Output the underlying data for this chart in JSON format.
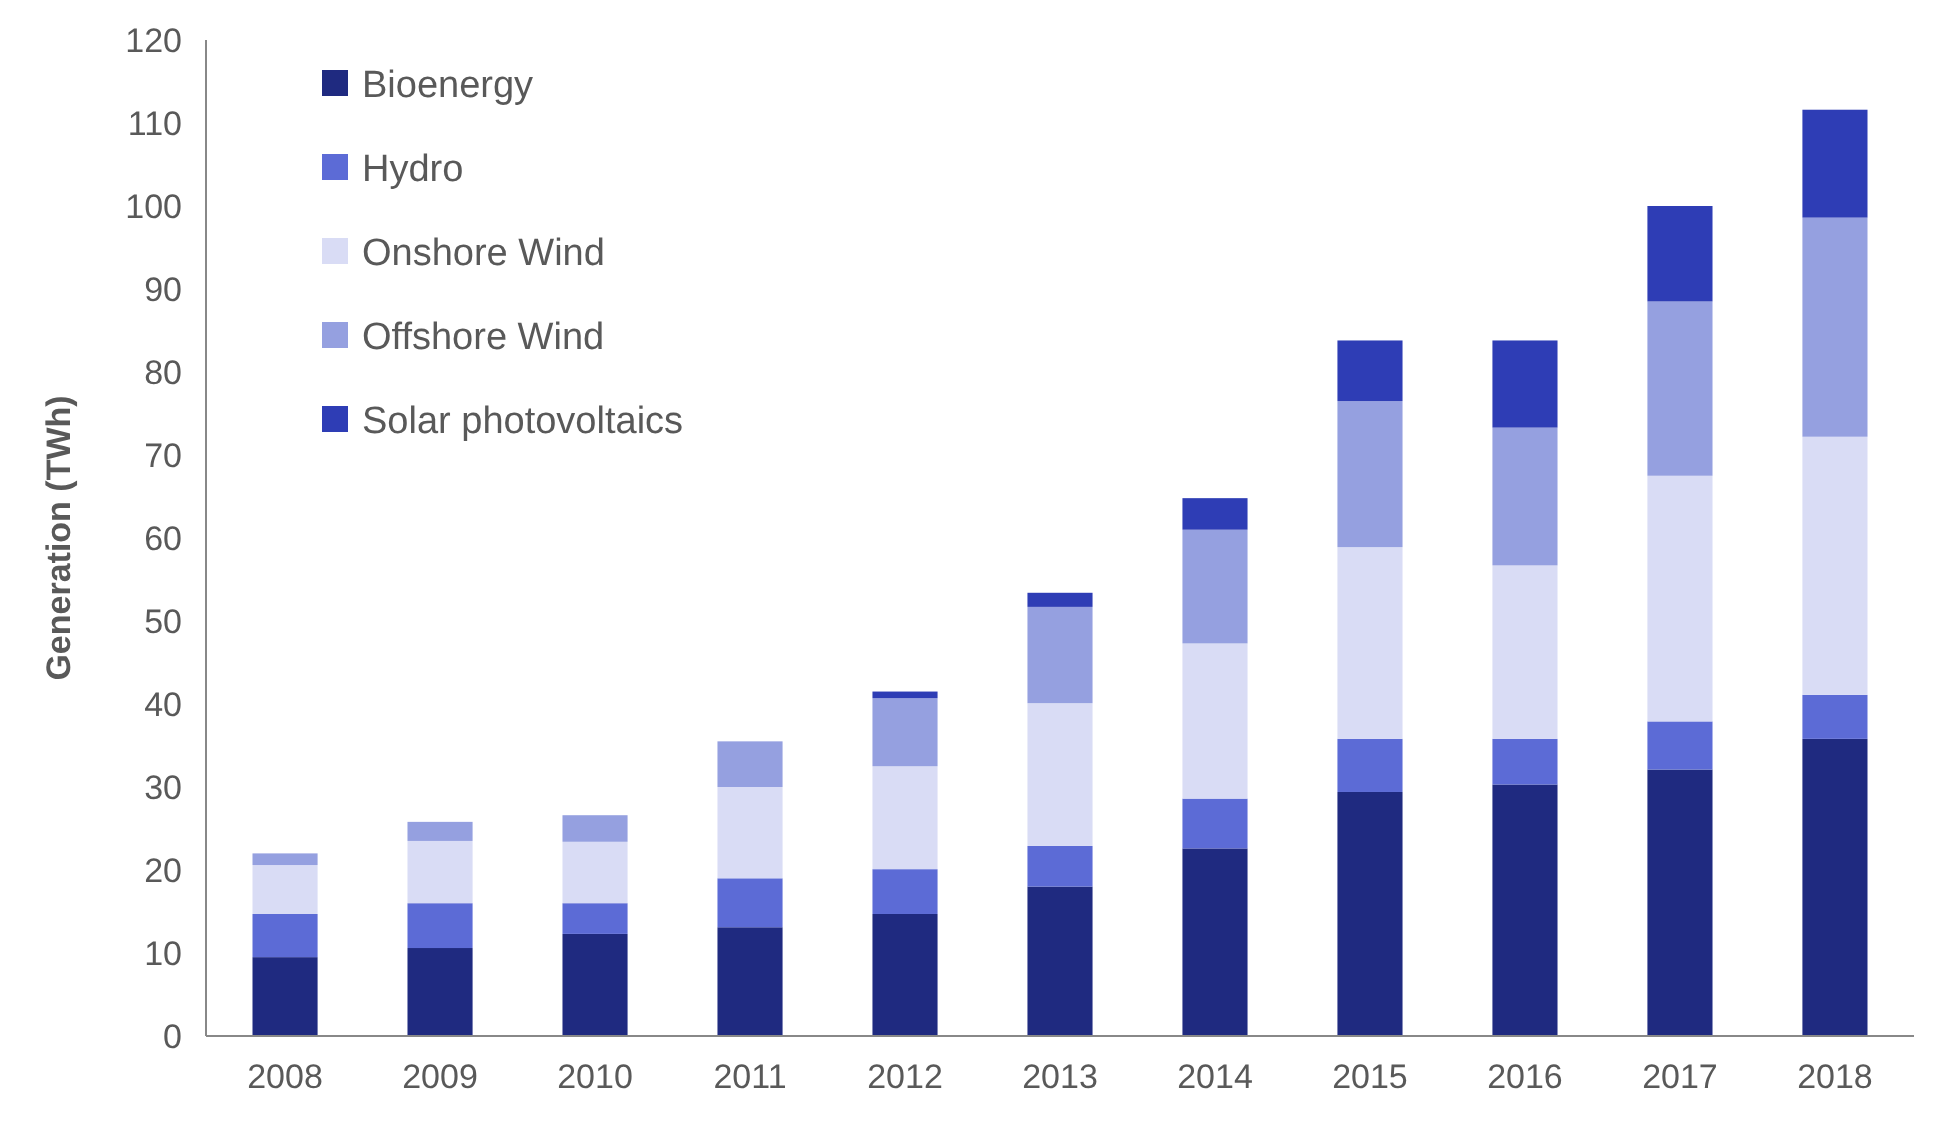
{
  "chart_data": {
    "type": "bar",
    "stacked": true,
    "ylabel": "Generation (TWh)",
    "categories": [
      "2008",
      "2009",
      "2010",
      "2011",
      "2012",
      "2013",
      "2014",
      "2015",
      "2016",
      "2017",
      "2018"
    ],
    "series": [
      {
        "name": "Bioenergy",
        "color": "#1f2a80",
        "values": [
          9.5,
          10.6,
          12.3,
          13.1,
          14.7,
          18.0,
          22.6,
          29.4,
          30.3,
          32.1,
          35.8
        ]
      },
      {
        "name": "Hydro",
        "color": "#5c6bd6",
        "values": [
          5.2,
          5.4,
          3.7,
          5.9,
          5.4,
          4.9,
          6.0,
          6.4,
          5.5,
          5.8,
          5.3
        ]
      },
      {
        "name": "Onshore Wind",
        "color": "#d9dcf5",
        "values": [
          5.9,
          7.5,
          7.4,
          11.0,
          12.4,
          17.2,
          18.7,
          23.1,
          20.9,
          29.6,
          31.1
        ]
      },
      {
        "name": "Offshore Wind",
        "color": "#95a0e0",
        "values": [
          1.4,
          2.3,
          3.2,
          5.5,
          8.2,
          11.6,
          13.7,
          17.6,
          16.6,
          21.0,
          26.4
        ]
      },
      {
        "name": "Solar photovoltaics",
        "color": "#2e3db5",
        "values": [
          0,
          0,
          0,
          0,
          0.8,
          1.7,
          3.8,
          7.3,
          10.5,
          11.5,
          13.0
        ]
      }
    ],
    "ylim": [
      0,
      120
    ],
    "yticks": [
      0,
      10,
      20,
      30,
      40,
      50,
      60,
      70,
      80,
      90,
      100,
      110,
      120
    ],
    "grid": false,
    "legend": "top left"
  }
}
